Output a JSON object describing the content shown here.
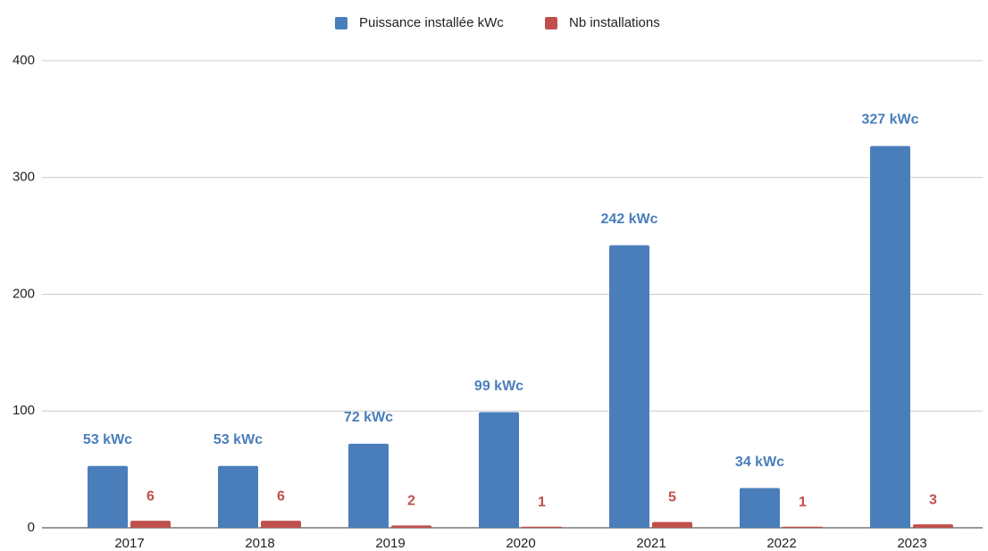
{
  "chart_data": {
    "type": "bar",
    "categories": [
      "2017",
      "2018",
      "2019",
      "2020",
      "2021",
      "2022",
      "2023"
    ],
    "series": [
      {
        "name": "Puissance installée kWc",
        "color": "#4a7ebb",
        "values": [
          53,
          53,
          72,
          99,
          242,
          34,
          327
        ],
        "value_labels": [
          "53 kWc",
          "53 kWc",
          "72 kWc",
          "99 kWc",
          "242 kWc",
          "34 kWc",
          "327 kWc"
        ]
      },
      {
        "name": "Nb installations",
        "color": "#c0504d",
        "values": [
          6,
          6,
          2,
          1,
          5,
          1,
          3
        ]
      }
    ],
    "ylim": [
      0,
      400
    ],
    "yticks": [
      0,
      100,
      200,
      300,
      400
    ],
    "grid": true,
    "legend": "top"
  }
}
